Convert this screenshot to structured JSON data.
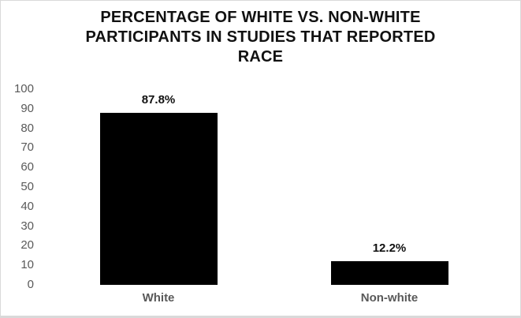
{
  "page": {
    "background": "#ffffff",
    "border_color": "#d9d9d9"
  },
  "title_lines": [
    "PERCENTAGE OF WHITE VS. NON-WHITE",
    "PARTICIPANTS IN STUDIES THAT REPORTED",
    "RACE"
  ],
  "colors": {
    "title_text": "#111111",
    "axis_text": "#595959",
    "data_label_text": "#111111",
    "bar_fill": "#000000"
  },
  "chart_data": {
    "type": "bar",
    "title": "PERCENTAGE OF WHITE VS. NON-WHITE PARTICIPANTS IN STUDIES THAT REPORTED RACE",
    "categories": [
      "White",
      "Non-white"
    ],
    "values": [
      87.8,
      12.2
    ],
    "data_labels": [
      "87.8%",
      "12.2%"
    ],
    "xlabel": "",
    "ylabel": "",
    "ylim": [
      0,
      100
    ],
    "yticks": [
      100,
      90,
      80,
      70,
      60,
      50,
      40,
      30,
      20,
      10,
      0
    ],
    "grid": false,
    "legend": false,
    "bar_color": "#000000"
  }
}
